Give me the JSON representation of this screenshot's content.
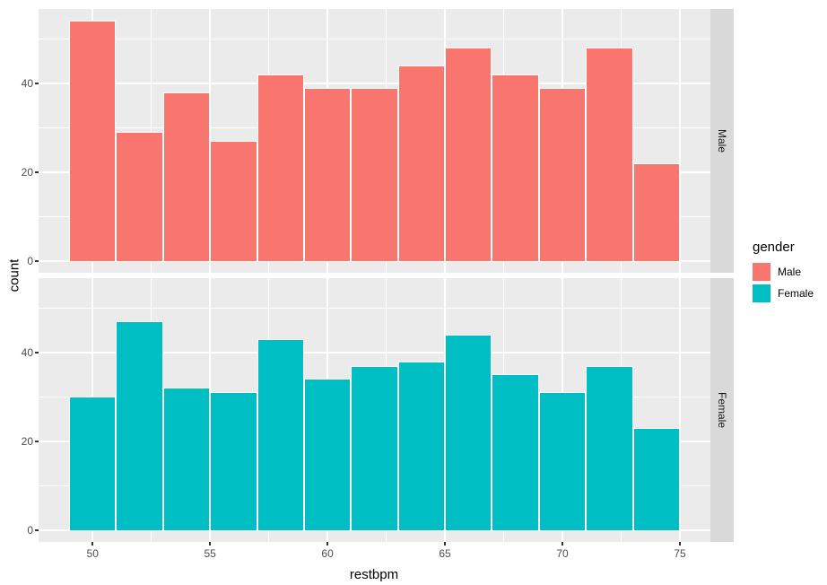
{
  "chart_data": {
    "type": "bar",
    "subtype": "faceted-histogram",
    "xlabel": "restbpm",
    "ylabel": "count",
    "bin_start": 49,
    "binwidth": 2,
    "x_domain": [
      47.7,
      76.3
    ],
    "y_domain": [
      -2.7,
      56.7
    ],
    "x_major_ticks": [
      50,
      55,
      60,
      65,
      70,
      75
    ],
    "x_minor_ticks": [
      52.5,
      57.5,
      62.5,
      67.5,
      72.5
    ],
    "y_major_ticks": [
      0,
      20,
      40
    ],
    "y_minor_ticks": [
      10,
      30,
      50
    ],
    "grid": true,
    "facets": [
      {
        "label": "Male",
        "color": "#F8766D",
        "bin_starts": [
          49,
          51,
          53,
          55,
          57,
          59,
          61,
          63,
          65,
          67,
          69,
          71,
          73
        ],
        "counts": [
          54,
          29,
          38,
          27,
          42,
          39,
          39,
          44,
          48,
          42,
          39,
          48,
          22
        ]
      },
      {
        "label": "Female",
        "color": "#00BFC4",
        "bin_starts": [
          49,
          51,
          53,
          55,
          57,
          59,
          61,
          63,
          65,
          67,
          69,
          71,
          73
        ],
        "counts": [
          30,
          47,
          32,
          31,
          43,
          34,
          37,
          38,
          44,
          35,
          31,
          37,
          23
        ]
      }
    ],
    "legend": {
      "title": "gender",
      "position": "right",
      "entries": [
        {
          "label": "Male",
          "color": "#F8766D"
        },
        {
          "label": "Female",
          "color": "#00BFC4"
        }
      ]
    }
  },
  "colors": {
    "panel_background": "#EBEBEB",
    "strip_background": "#D9D9D9",
    "gridline": "#FFFFFF",
    "tick_text": "#4D4D4D",
    "strip_text": "#1A1A1A",
    "axis_title_text": "#000000"
  }
}
